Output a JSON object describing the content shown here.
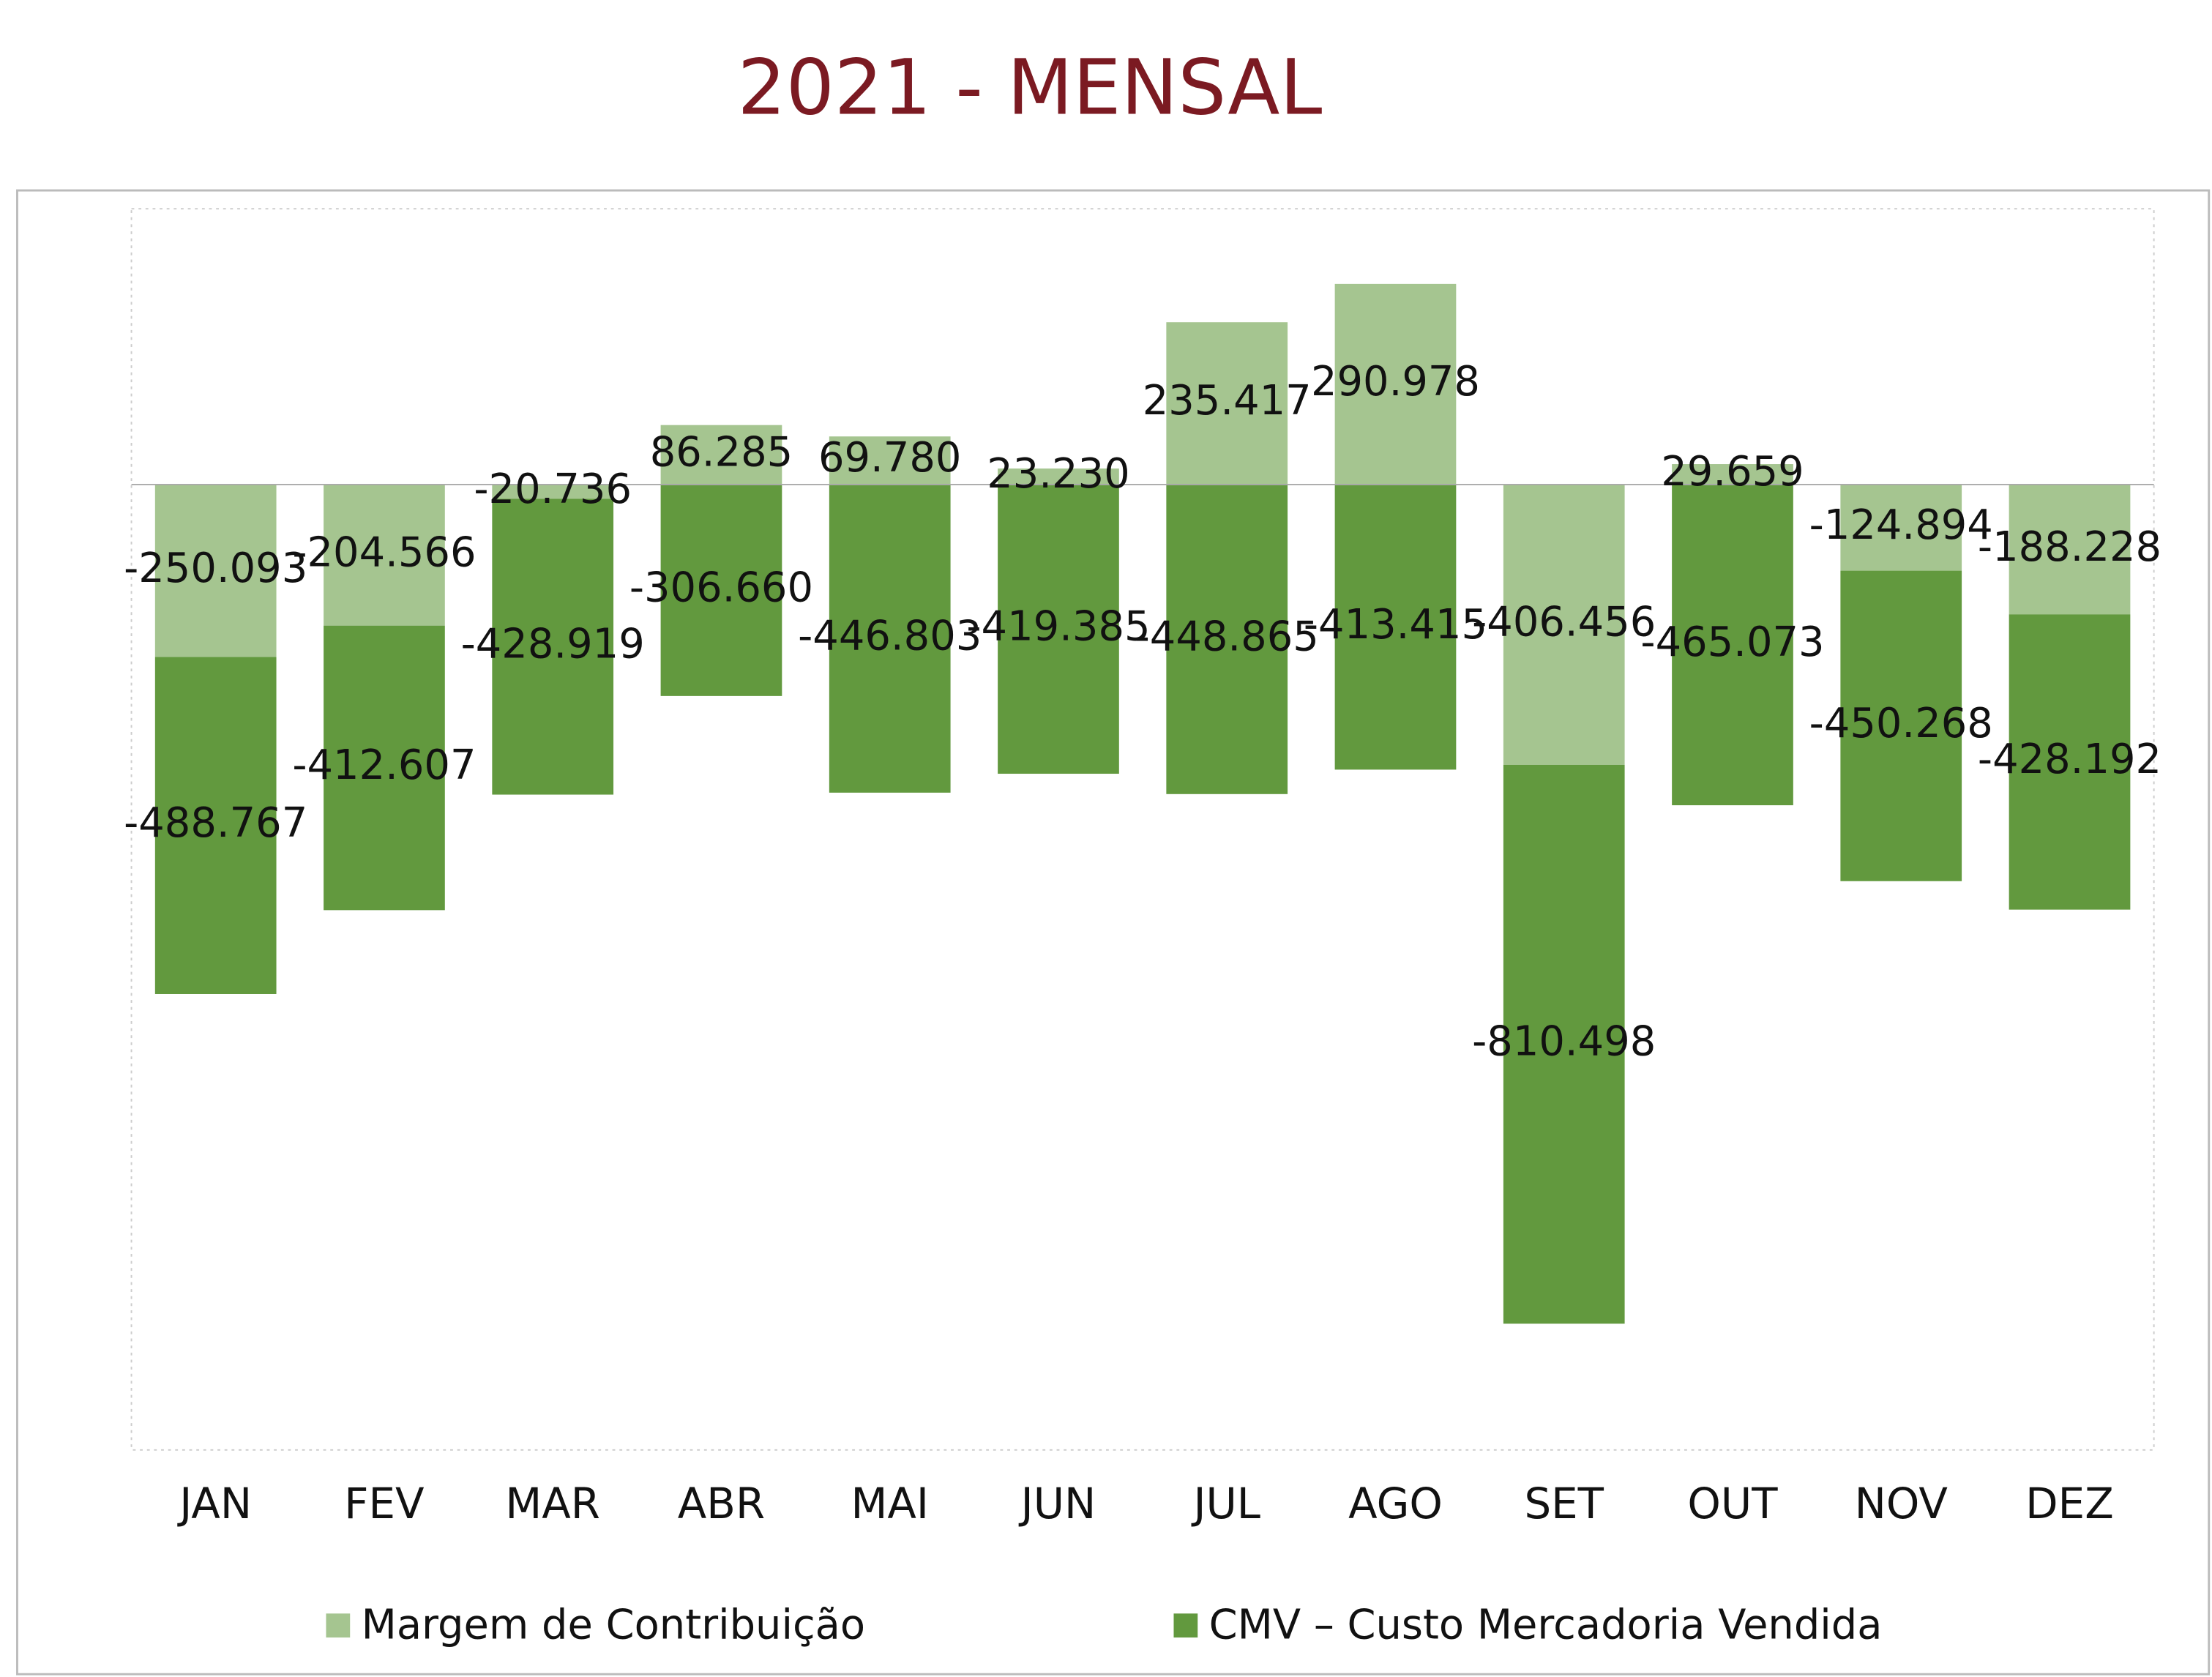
{
  "chart_data": {
    "type": "stacked_bar",
    "title": "2021 - MENSAL",
    "categories": [
      "JAN",
      "FEV",
      "MAR",
      "ABR",
      "MAI",
      "JUN",
      "JUL",
      "AGO",
      "SET",
      "OUT",
      "NOV",
      "DEZ"
    ],
    "series": [
      {
        "name": "Margem de Contribuição",
        "color": "#a5c590",
        "values": [
          -250093,
          -204566,
          -20736,
          86285,
          69780,
          23230,
          235417,
          290978,
          -406456,
          29659,
          -124894,
          -188228
        ],
        "value_labels": [
          "-250.093",
          "-204.566",
          "-20.736",
          "86.285",
          "69.780",
          "23.230",
          "235.417",
          "290.978",
          "-406.456",
          "29.659",
          "-124.894",
          "-188.228"
        ]
      },
      {
        "name": "CMV – Custo Mercadoria Vendida",
        "color": "#62993e",
        "values": [
          -488767,
          -412607,
          -428919,
          -306660,
          -446803,
          -419385,
          -448865,
          -413415,
          -810498,
          -465073,
          -450268,
          -428192
        ],
        "value_labels": [
          "-488.767",
          "-412.607",
          "-428.919",
          "-306.660",
          "-446.803",
          "-419.385",
          "-448.865",
          "-413.415",
          "-810.498",
          "-465.073",
          "-450.268",
          "-428.192"
        ]
      }
    ],
    "ylim": [
      -1400000,
      400000
    ],
    "legend": "bottom"
  }
}
